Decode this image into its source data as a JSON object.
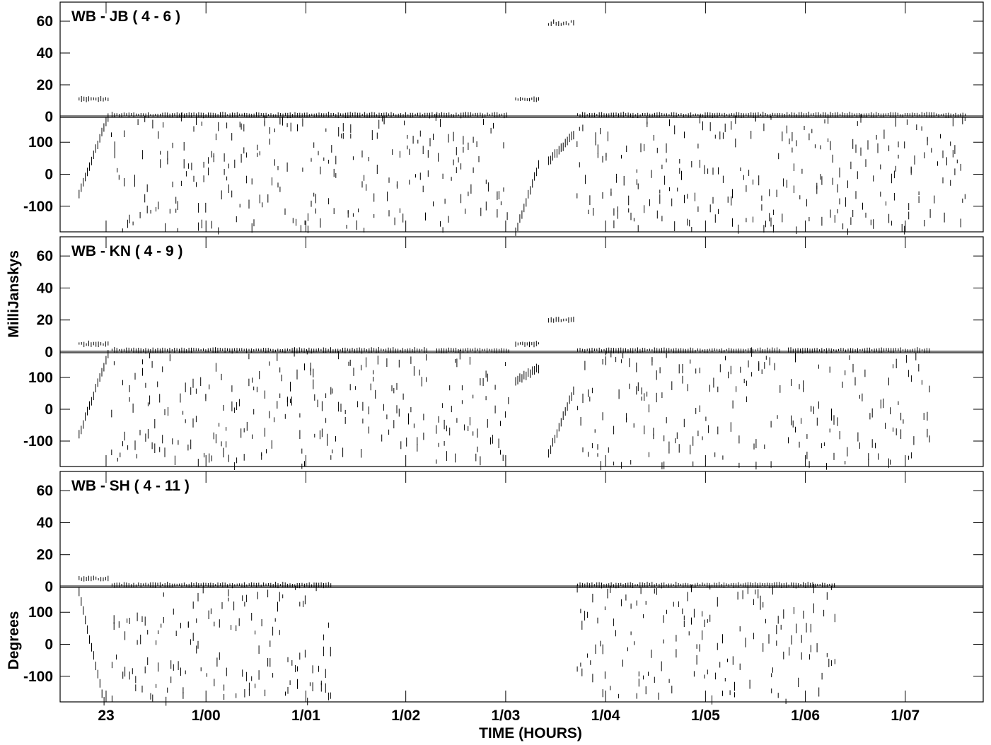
{
  "chart_data": {
    "type": "scatter",
    "xlabel": "TIME (HOURS)",
    "ylabel_amp": "MilliJanskys",
    "ylabel_phase": "Degrees",
    "x_ticks": [
      "23",
      "1/00",
      "1/01",
      "1/02",
      "1/03",
      "1/04",
      "1/05",
      "1/06",
      "1/07"
    ],
    "x_tick_hours": [
      23,
      24,
      25,
      26,
      27,
      28,
      29,
      30,
      31
    ],
    "xlim_hours": [
      22.54,
      31.78
    ],
    "amp_ticks": [
      0,
      20,
      40,
      60
    ],
    "amp_ylim": [
      0,
      72
    ],
    "phase_ticks": [
      -100,
      0,
      100
    ],
    "phase_ylim": [
      -180,
      180
    ],
    "panels": [
      {
        "title": "WB - JB ( 4 - 6 )",
        "amp_segments": [
          {
            "t": [
              22.73,
              23.02
            ],
            "value": 11
          },
          {
            "t": [
              23.06,
              27.01
            ],
            "value": 1
          },
          {
            "t": [
              27.1,
              27.33
            ],
            "value": 11
          },
          {
            "t": [
              27.43,
              27.68
            ],
            "value": 59
          },
          {
            "t": [
              27.72,
              31.6
            ],
            "value": 1
          }
        ],
        "phase_segments": [
          {
            "t": [
              22.73,
              23.02
            ],
            "from": -60,
            "to": 180
          },
          {
            "t": [
              27.1,
              27.33
            ],
            "from": -180,
            "to": 30
          },
          {
            "t": [
              27.43,
              27.68
            ],
            "from": 40,
            "to": 125
          }
        ],
        "phase_scatter_intervals": [
          [
            23.06,
            27.01
          ],
          [
            27.72,
            31.6
          ]
        ]
      },
      {
        "title": "WB - KN ( 4 - 9 )",
        "amp_segments": [
          {
            "t": [
              22.73,
              23.02
            ],
            "value": 5
          },
          {
            "t": [
              23.06,
              26.21
            ],
            "value": 1
          },
          {
            "t": [
              26.31,
              27.03
            ],
            "value": 1
          },
          {
            "t": [
              27.1,
              27.33
            ],
            "value": 5
          },
          {
            "t": [
              27.43,
              27.68
            ],
            "value": 20
          },
          {
            "t": [
              27.72,
              29.74
            ],
            "value": 1
          },
          {
            "t": [
              29.83,
              31.24
            ],
            "value": 1
          }
        ],
        "phase_segments": [
          {
            "t": [
              22.73,
              23.02
            ],
            "from": -80,
            "to": 170
          },
          {
            "t": [
              27.1,
              27.33
            ],
            "from": 90,
            "to": 130
          },
          {
            "t": [
              27.43,
              27.68
            ],
            "from": -140,
            "to": 60
          }
        ],
        "phase_scatter_intervals": [
          [
            23.06,
            26.21
          ],
          [
            26.31,
            27.03
          ],
          [
            27.72,
            29.74
          ],
          [
            29.83,
            31.24
          ]
        ]
      },
      {
        "title": "WB - SH ( 4 - 11 )",
        "amp_segments": [
          {
            "t": [
              22.73,
              23.02
            ],
            "value": 5
          },
          {
            "t": [
              23.06,
              25.25
            ],
            "value": 1
          },
          {
            "t": [
              27.72,
              30.29
            ],
            "value": 1
          }
        ],
        "phase_segments": [
          {
            "t": [
              22.73,
              22.98
            ],
            "from": 160,
            "to": -180
          }
        ],
        "phase_scatter_intervals": [
          [
            23.06,
            25.25
          ],
          [
            27.72,
            30.29
          ]
        ]
      }
    ]
  }
}
